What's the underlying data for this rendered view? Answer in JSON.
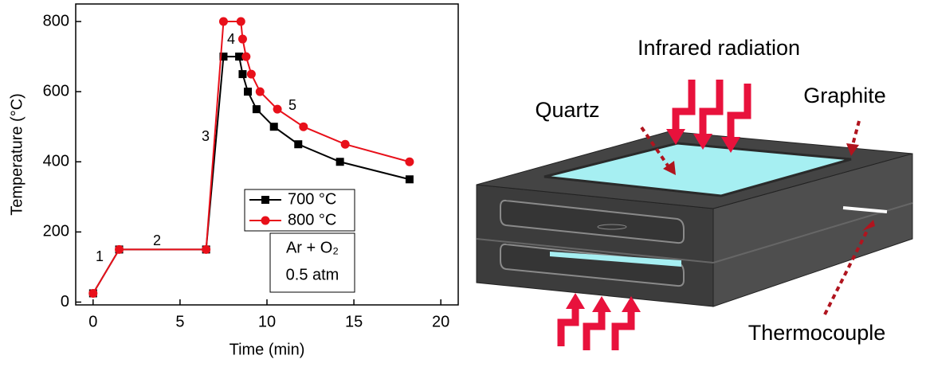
{
  "chart_data": {
    "type": "line",
    "x_label": "Time (min)",
    "y_label": "Temperature (°C)",
    "series": [
      {
        "name": "700 °C",
        "color": "#000000",
        "marker": "square",
        "x": [
          0,
          1.5,
          6.5,
          7.5,
          8.4,
          8.6,
          8.9,
          9.4,
          10.4,
          11.8,
          14.2,
          18.2
        ],
        "values": [
          25,
          150,
          150,
          700,
          700,
          650,
          600,
          550,
          500,
          450,
          400,
          350
        ]
      },
      {
        "name": "800 °C",
        "color": "#e8101a",
        "marker": "circle",
        "x": [
          0,
          1.5,
          6.5,
          7.5,
          8.5,
          8.6,
          8.8,
          9.1,
          9.6,
          10.6,
          12.1,
          14.5,
          18.2
        ],
        "values": [
          25,
          150,
          150,
          800,
          800,
          750,
          700,
          650,
          600,
          550,
          500,
          450,
          400
        ]
      }
    ],
    "annotations": [
      "1",
      "2",
      "3",
      "4",
      "5"
    ],
    "condition_box": [
      "Ar + O₂",
      "0.5 atm"
    ],
    "xlim": [
      -1,
      21
    ],
    "xticks": [
      0,
      5,
      10,
      15,
      20
    ],
    "ylim": [
      -8,
      850
    ],
    "yticks": [
      0,
      200,
      400,
      600,
      800
    ],
    "grid": false,
    "legend": "right"
  },
  "diagram": {
    "infrared": "Infrared radiation",
    "quartz": "Quartz",
    "graphite": "Graphite",
    "thermocouple": "Thermocouple"
  }
}
